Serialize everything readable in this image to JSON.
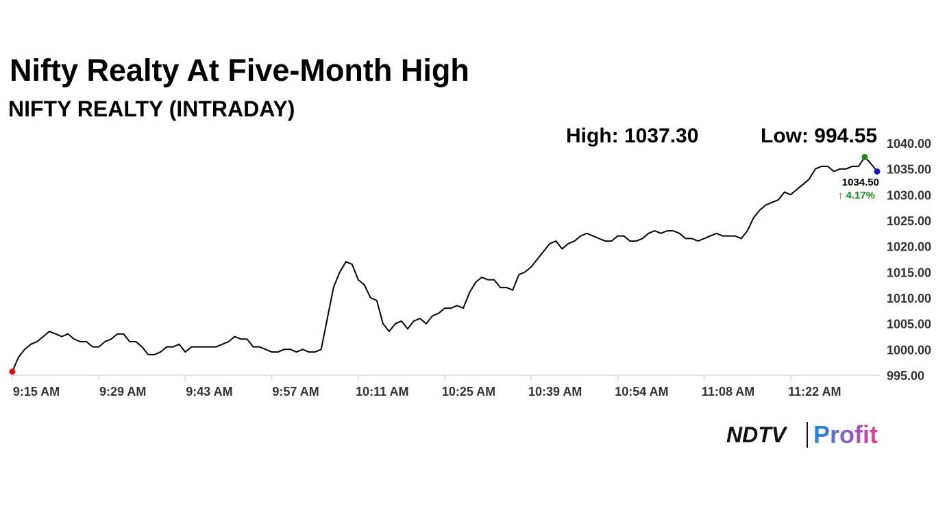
{
  "chart_data": {
    "type": "line",
    "title": "Nifty Realty At Five-Month High",
    "subtitle": "NIFTY REALTY (INTRADAY)",
    "high_label": "High: 1037.30",
    "low_label": "Low: 994.55",
    "last_label": "1034.50",
    "change_label": "↑ 4.17%",
    "categories": [
      "9:15 AM",
      null,
      null,
      null,
      null,
      null,
      null,
      null,
      null,
      null,
      null,
      null,
      null,
      null,
      "9:29 AM",
      null,
      null,
      null,
      null,
      null,
      null,
      null,
      null,
      null,
      null,
      null,
      null,
      null,
      "9:43 AM",
      null,
      null,
      null,
      null,
      null,
      null,
      null,
      null,
      null,
      null,
      null,
      null,
      null,
      "9:57 AM",
      null,
      null,
      null,
      null,
      null,
      null,
      null,
      null,
      null,
      null,
      null,
      null,
      null,
      "10:11 AM",
      null,
      null,
      null,
      null,
      null,
      null,
      null,
      null,
      null,
      null,
      null,
      null,
      null,
      "10:25 AM",
      null,
      null,
      null,
      null,
      null,
      null,
      null,
      null,
      null,
      null,
      null,
      null,
      null,
      "10:39 AM",
      null,
      null,
      null,
      null,
      null,
      null,
      null,
      null,
      null,
      null,
      null,
      null,
      null,
      "10:54 AM",
      null,
      null,
      null,
      null,
      null,
      null,
      null,
      null,
      null,
      null,
      null,
      null,
      null,
      "11:08 AM",
      null,
      null,
      null,
      null,
      null,
      null,
      null,
      null,
      null,
      null,
      null,
      null,
      null,
      "11:22 AM",
      null,
      null,
      null,
      null,
      null,
      null,
      null,
      null,
      null,
      null,
      null,
      null,
      null,
      null
    ],
    "series": [
      {
        "name": "NIFTY REALTY",
        "color": "#000000",
        "values": [
          995.7,
          998.5,
          1000,
          1001,
          1001.5,
          1002.5,
          1003.5,
          1003,
          1002.5,
          1003,
          1002,
          1001.5,
          1001.5,
          1000.5,
          1000.5,
          1001.5,
          1002,
          1003,
          1003,
          1001.5,
          1001.5,
          1000.5,
          999,
          999,
          999.5,
          1000.5,
          1000.5,
          1001,
          999.5,
          1000.5,
          1000.5,
          1000.5,
          1000.5,
          1000.5,
          1001,
          1001.5,
          1002.5,
          1002,
          1002,
          1000.5,
          1000.5,
          1000,
          999.5,
          999.5,
          1000,
          1000,
          999.5,
          1000,
          999.5,
          999.5,
          1000,
          1006,
          1012,
          1015,
          1017,
          1016.5,
          1013.5,
          1012.5,
          1010,
          1009.5,
          1005,
          1003.5,
          1005,
          1005.5,
          1004,
          1005.5,
          1006,
          1005,
          1006.5,
          1007,
          1008,
          1008,
          1008.5,
          1008,
          1011,
          1013,
          1014,
          1013.5,
          1013.5,
          1012,
          1012,
          1011.5,
          1014.5,
          1015,
          1016,
          1017.5,
          1019,
          1020.5,
          1021,
          1019.5,
          1020.5,
          1021,
          1022,
          1022.5,
          1022,
          1021.5,
          1021,
          1021,
          1022,
          1022,
          1021,
          1021,
          1021.5,
          1022.5,
          1023,
          1022.5,
          1023,
          1023,
          1022.5,
          1021.5,
          1021.5,
          1021,
          1021.5,
          1022,
          1022.5,
          1022,
          1022,
          1022,
          1021.5,
          1023,
          1025.5,
          1027,
          1028,
          1028.5,
          1029,
          1030.5,
          1030,
          1031,
          1032,
          1033,
          1035,
          1035.5,
          1035.5,
          1034.5,
          1035,
          1035,
          1035.5,
          1035.5,
          1037.3,
          1036,
          1034.5
        ]
      }
    ],
    "marker_colors": {
      "first": "#e01010",
      "high": "#1a8a1a",
      "last": "#1a1acc"
    },
    "ylim": [
      995,
      1040
    ],
    "yticks": [
      {
        "value": 995,
        "label": "995.00"
      },
      {
        "value": 1000,
        "label": "1000.00"
      },
      {
        "value": 1005,
        "label": "1005.00"
      },
      {
        "value": 1010,
        "label": "1010.00"
      },
      {
        "value": 1015,
        "label": "1015.00"
      },
      {
        "value": 1020,
        "label": "1020.00"
      },
      {
        "value": 1025,
        "label": "1025.00"
      },
      {
        "value": 1030,
        "label": "1030.00"
      },
      {
        "value": 1035,
        "label": "1035.00"
      },
      {
        "value": 1040,
        "label": "1040.00"
      }
    ],
    "grid": false
  },
  "logo": {
    "brand": "NDTV",
    "product": "Profit"
  }
}
